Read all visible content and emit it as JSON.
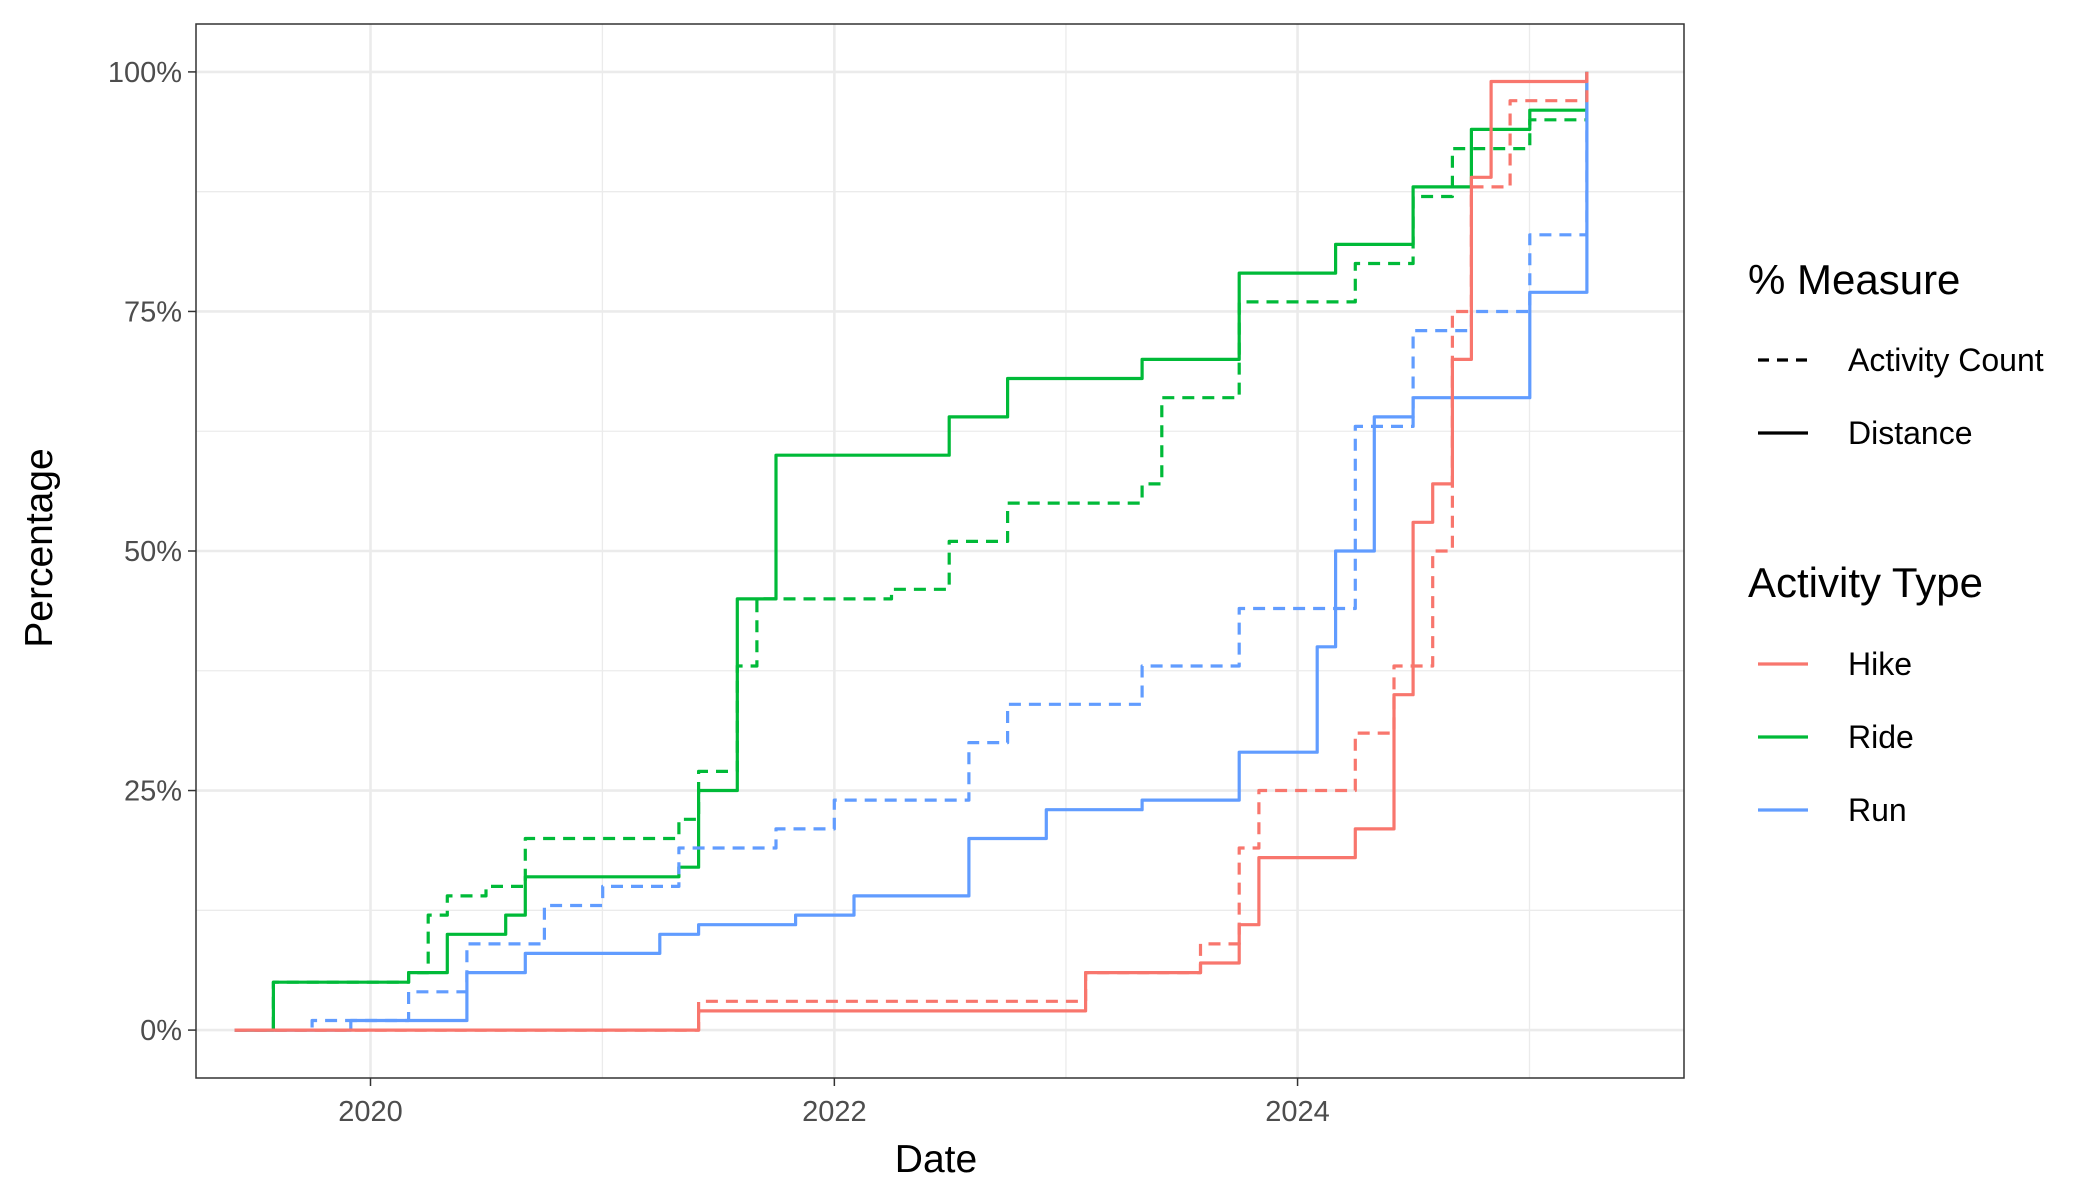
{
  "chart_data": {
    "type": "line",
    "title": "",
    "xlabel": "Date",
    "ylabel": "Percentage",
    "x_range": [
      "2019-04-01",
      "2025-09-01"
    ],
    "y_range": [
      -5,
      105
    ],
    "x_ticks": [
      {
        "date": "2020-01-01",
        "label": "2020"
      },
      {
        "date": "2022-01-01",
        "label": "2022"
      },
      {
        "date": "2024-01-01",
        "label": "2024"
      }
    ],
    "y_ticks": [
      {
        "value": 0,
        "label": "0%"
      },
      {
        "value": 25,
        "label": "25%"
      },
      {
        "value": 50,
        "label": "50%"
      },
      {
        "value": 75,
        "label": "75%"
      },
      {
        "value": 100,
        "label": "100%"
      }
    ],
    "grid": true,
    "legend_position": "right",
    "legends": {
      "measure": {
        "title": "% Measure",
        "items": [
          {
            "label": "Activity Count",
            "style": "dashed"
          },
          {
            "label": "Distance",
            "style": "solid"
          }
        ]
      },
      "activity": {
        "title": "Activity Type",
        "items": [
          {
            "label": "Hike",
            "color": "#F8766D"
          },
          {
            "label": "Ride",
            "color": "#00BA38"
          },
          {
            "label": "Run",
            "color": "#619CFF"
          }
        ]
      }
    },
    "series": [
      {
        "activity": "Ride",
        "measure": "Activity Count",
        "color": "#00BA38",
        "dashed": true,
        "points": [
          [
            "2019-06-01",
            0
          ],
          [
            "2019-08-01",
            1
          ],
          [
            "2019-08-01",
            5
          ],
          [
            "2019-12-01",
            5
          ],
          [
            "2020-03-01",
            6
          ],
          [
            "2020-04-01",
            12
          ],
          [
            "2020-05-01",
            14
          ],
          [
            "2020-07-01",
            15
          ],
          [
            "2020-09-01",
            20
          ],
          [
            "2021-05-01",
            22
          ],
          [
            "2021-06-01",
            27
          ],
          [
            "2021-08-01",
            38
          ],
          [
            "2021-09-01",
            45
          ],
          [
            "2022-04-01",
            46
          ],
          [
            "2022-07-01",
            51
          ],
          [
            "2022-10-01",
            55
          ],
          [
            "2023-05-01",
            57
          ],
          [
            "2023-06-01",
            66
          ],
          [
            "2023-10-01",
            76
          ],
          [
            "2024-04-01",
            80
          ],
          [
            "2024-07-01",
            87
          ],
          [
            "2024-09-01",
            92
          ],
          [
            "2025-01-01",
            95
          ],
          [
            "2025-04-01",
            100
          ]
        ]
      },
      {
        "activity": "Ride",
        "measure": "Distance",
        "color": "#00BA38",
        "dashed": false,
        "points": [
          [
            "2019-06-01",
            0
          ],
          [
            "2019-08-01",
            2
          ],
          [
            "2019-08-01",
            5
          ],
          [
            "2019-12-01",
            5
          ],
          [
            "2020-03-01",
            6
          ],
          [
            "2020-05-01",
            10
          ],
          [
            "2020-08-01",
            12
          ],
          [
            "2020-09-01",
            16
          ],
          [
            "2021-05-01",
            17
          ],
          [
            "2021-06-01",
            25
          ],
          [
            "2021-08-01",
            45
          ],
          [
            "2021-10-01",
            55
          ],
          [
            "2021-10-01",
            60
          ],
          [
            "2022-03-01",
            60
          ],
          [
            "2022-07-01",
            64
          ],
          [
            "2022-10-01",
            68
          ],
          [
            "2023-05-01",
            70
          ],
          [
            "2023-10-01",
            79
          ],
          [
            "2024-03-01",
            82
          ],
          [
            "2024-07-01",
            88
          ],
          [
            "2024-10-01",
            94
          ],
          [
            "2025-01-01",
            96
          ],
          [
            "2025-04-01",
            100
          ]
        ]
      },
      {
        "activity": "Run",
        "measure": "Activity Count",
        "color": "#619CFF",
        "dashed": true,
        "points": [
          [
            "2019-06-01",
            0
          ],
          [
            "2019-10-01",
            1
          ],
          [
            "2020-03-01",
            4
          ],
          [
            "2020-06-01",
            9
          ],
          [
            "2020-10-01",
            13
          ],
          [
            "2021-01-01",
            15
          ],
          [
            "2021-05-01",
            19
          ],
          [
            "2021-10-01",
            21
          ],
          [
            "2022-01-01",
            24
          ],
          [
            "2022-08-01",
            30
          ],
          [
            "2022-10-01",
            34
          ],
          [
            "2023-05-01",
            38
          ],
          [
            "2023-10-01",
            44
          ],
          [
            "2024-04-01",
            63
          ],
          [
            "2024-07-01",
            73
          ],
          [
            "2024-10-01",
            75
          ],
          [
            "2025-01-01",
            83
          ],
          [
            "2025-04-01",
            100
          ]
        ]
      },
      {
        "activity": "Run",
        "measure": "Distance",
        "color": "#619CFF",
        "dashed": false,
        "points": [
          [
            "2019-06-01",
            0
          ],
          [
            "2019-12-01",
            1
          ],
          [
            "2020-06-01",
            6
          ],
          [
            "2020-09-01",
            8
          ],
          [
            "2021-04-01",
            10
          ],
          [
            "2021-06-01",
            11
          ],
          [
            "2021-11-01",
            12
          ],
          [
            "2022-02-01",
            14
          ],
          [
            "2022-08-01",
            20
          ],
          [
            "2022-12-01",
            23
          ],
          [
            "2023-05-01",
            24
          ],
          [
            "2023-10-01",
            29
          ],
          [
            "2024-02-01",
            40
          ],
          [
            "2024-03-01",
            50
          ],
          [
            "2024-05-01",
            64
          ],
          [
            "2024-07-01",
            66
          ],
          [
            "2024-11-01",
            66
          ],
          [
            "2025-01-01",
            77
          ],
          [
            "2025-04-01",
            100
          ]
        ]
      },
      {
        "activity": "Hike",
        "measure": "Activity Count",
        "color": "#F8766D",
        "dashed": true,
        "points": [
          [
            "2019-06-01",
            0
          ],
          [
            "2021-06-01",
            0
          ],
          [
            "2021-06-01",
            3
          ],
          [
            "2023-02-01",
            3
          ],
          [
            "2023-02-01",
            6
          ],
          [
            "2023-08-01",
            9
          ],
          [
            "2023-10-01",
            19
          ],
          [
            "2023-11-01",
            25
          ],
          [
            "2024-04-01",
            31
          ],
          [
            "2024-06-01",
            38
          ],
          [
            "2024-08-01",
            50
          ],
          [
            "2024-09-01",
            75
          ],
          [
            "2024-10-01",
            88
          ],
          [
            "2024-12-01",
            97
          ],
          [
            "2025-04-01",
            100
          ]
        ]
      },
      {
        "activity": "Hike",
        "measure": "Distance",
        "color": "#F8766D",
        "dashed": false,
        "points": [
          [
            "2019-06-01",
            0
          ],
          [
            "2021-06-01",
            0
          ],
          [
            "2021-06-01",
            2
          ],
          [
            "2023-02-01",
            2
          ],
          [
            "2023-02-01",
            6
          ],
          [
            "2023-08-01",
            7
          ],
          [
            "2023-10-01",
            11
          ],
          [
            "2023-11-01",
            18
          ],
          [
            "2024-04-01",
            21
          ],
          [
            "2024-06-01",
            21
          ],
          [
            "2024-06-01",
            35
          ],
          [
            "2024-07-01",
            53
          ],
          [
            "2024-08-01",
            57
          ],
          [
            "2024-09-01",
            70
          ],
          [
            "2024-10-01",
            89
          ],
          [
            "2024-11-01",
            99
          ],
          [
            "2025-04-01",
            100
          ]
        ]
      }
    ]
  }
}
